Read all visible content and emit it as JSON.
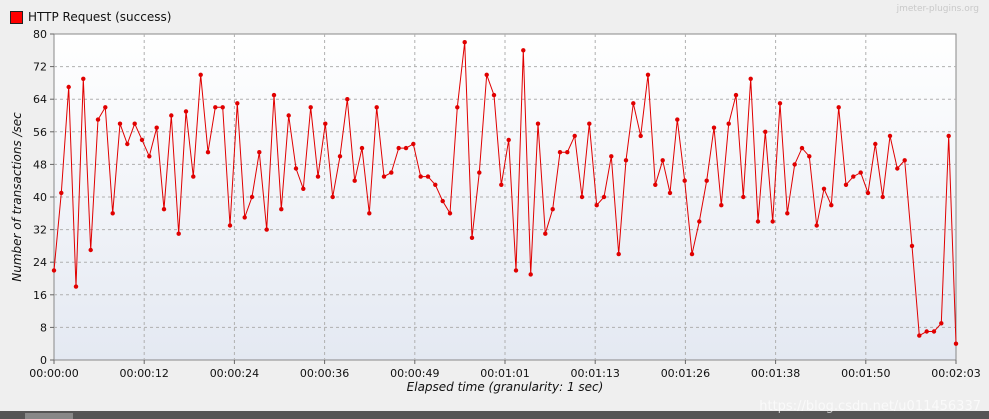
{
  "watermark": "jmeter-plugins.org",
  "credit": "https://blog.csdn.net/u011456337",
  "chart_data": {
    "type": "line",
    "legend": {
      "entries": [
        "HTTP Request (success)"
      ],
      "position": "top-left"
    },
    "series": [
      {
        "name": "HTTP Request (success)",
        "color": "#e00000",
        "values": [
          22,
          41,
          67,
          18,
          69,
          27,
          59,
          62,
          36,
          58,
          53,
          58,
          54,
          50,
          57,
          37,
          60,
          31,
          61,
          45,
          70,
          51,
          62,
          62,
          33,
          63,
          35,
          40,
          51,
          32,
          65,
          37,
          60,
          47,
          42,
          62,
          45,
          58,
          40,
          50,
          64,
          44,
          52,
          36,
          62,
          45,
          46,
          52,
          52,
          53,
          45,
          45,
          43,
          39,
          36,
          62,
          78,
          30,
          46,
          70,
          65,
          43,
          54,
          22,
          76,
          21,
          58,
          31,
          37,
          51,
          51,
          55,
          40,
          58,
          38,
          40,
          50,
          26,
          49,
          63,
          55,
          70,
          43,
          49,
          41,
          59,
          44,
          26,
          34,
          44,
          57,
          38,
          58,
          65,
          40,
          69,
          34,
          56,
          34,
          63,
          36,
          48,
          52,
          50,
          33,
          42,
          38,
          62,
          43,
          45,
          46,
          41,
          53,
          40,
          55,
          47,
          49,
          28,
          6,
          7,
          7,
          9,
          55,
          4
        ]
      }
    ],
    "xlabel": "Elapsed time (granularity: 1 sec)",
    "ylabel": "Number of transactions /sec",
    "xlim": [
      0,
      123
    ],
    "ylim": [
      0,
      80
    ],
    "x_ticks": [
      "00:00:00",
      "00:00:12",
      "00:00:24",
      "00:00:36",
      "00:00:49",
      "00:01:01",
      "00:01:13",
      "00:01:26",
      "00:01:38",
      "00:01:50",
      "00:02:03"
    ],
    "y_ticks": [
      "0",
      "8",
      "16",
      "24",
      "32",
      "40",
      "48",
      "56",
      "64",
      "72",
      "80"
    ],
    "grid": true
  }
}
